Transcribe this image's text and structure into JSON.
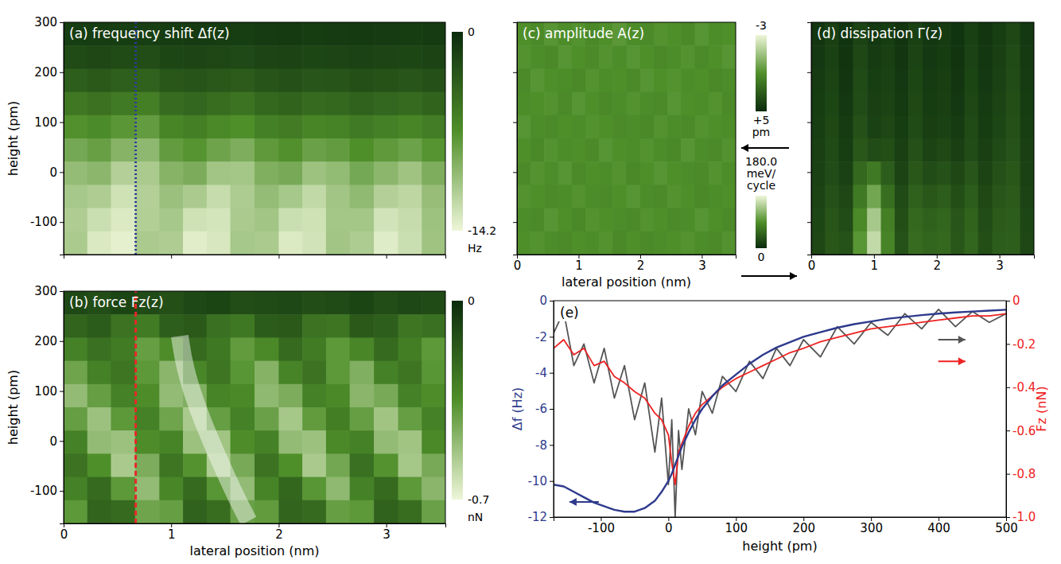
{
  "chart_data": [
    {
      "type": "heatmap",
      "title": "(a) frequency shift Δf(z)",
      "ylabel": "height (pm)",
      "xlim": [
        0,
        3.55
      ],
      "ylim": [
        -165,
        300
      ],
      "xticks": [
        0,
        1,
        2,
        3
      ],
      "yticks": [
        -100,
        0,
        100,
        200,
        300
      ],
      "tick_labels": "y",
      "x": [
        0.11,
        0.33,
        0.55,
        0.78,
        1.0,
        1.22,
        1.44,
        1.66,
        1.89,
        2.11,
        2.33,
        2.55,
        2.77,
        3.0,
        3.22,
        3.44
      ],
      "y": [
        277,
        230,
        184,
        137,
        91,
        44,
        -2,
        -49,
        -95,
        -142
      ],
      "z": [
        [
          -1.3,
          -1.2,
          -1.3,
          -1.4,
          -1.2,
          -1.1,
          -1.2,
          -1.3,
          -1.1,
          -1.0,
          -1.2,
          -1.1,
          -1.0,
          -1.1,
          -1.2,
          -1.1
        ],
        [
          -2.2,
          -2.0,
          -2.3,
          -2.4,
          -1.9,
          -1.8,
          -2.0,
          -2.1,
          -1.8,
          -1.7,
          -1.9,
          -1.8,
          -1.6,
          -1.8,
          -1.9,
          -1.7
        ],
        [
          -3.6,
          -3.3,
          -3.7,
          -3.9,
          -3.1,
          -2.9,
          -3.2,
          -3.4,
          -2.9,
          -2.7,
          -3.0,
          -2.9,
          -2.6,
          -2.8,
          -3.0,
          -2.7
        ],
        [
          -5.4,
          -5.0,
          -5.6,
          -5.9,
          -4.6,
          -4.2,
          -4.7,
          -5.1,
          -4.3,
          -4.0,
          -4.5,
          -4.3,
          -3.9,
          -4.2,
          -4.5,
          -4.0
        ],
        [
          -7.2,
          -6.8,
          -7.6,
          -8.0,
          -6.4,
          -5.9,
          -6.6,
          -7.1,
          -6.0,
          -5.7,
          -6.4,
          -6.2,
          -5.6,
          -6.0,
          -6.4,
          -5.8
        ],
        [
          -8.8,
          -8.2,
          -9.6,
          -9.9,
          -8.0,
          -7.4,
          -8.5,
          -9.2,
          -7.8,
          -7.2,
          -8.3,
          -8.0,
          -7.1,
          -7.8,
          -8.4,
          -7.4
        ],
        [
          -10.2,
          -9.8,
          -11.6,
          -11.2,
          -9.6,
          -9.1,
          -10.8,
          -10.9,
          -9.3,
          -8.9,
          -10.6,
          -10.1,
          -8.8,
          -9.8,
          -10.7,
          -9.2
        ],
        [
          -11.0,
          -11.4,
          -12.8,
          -11.6,
          -10.5,
          -11.2,
          -12.4,
          -11.3,
          -10.2,
          -11.0,
          -12.2,
          -10.8,
          -10.0,
          -11.6,
          -12.0,
          -10.3
        ],
        [
          -11.4,
          -12.6,
          -13.4,
          -11.5,
          -11.0,
          -12.8,
          -13.0,
          -11.2,
          -10.8,
          -12.6,
          -12.8,
          -10.9,
          -10.9,
          -12.9,
          -12.4,
          -10.6
        ],
        [
          -11.2,
          -13.3,
          -13.8,
          -11.2,
          -11.4,
          -13.6,
          -13.2,
          -11.0,
          -11.2,
          -13.4,
          -12.9,
          -10.8,
          -11.3,
          -13.5,
          -12.6,
          -10.7
        ]
      ],
      "zlim": [
        0,
        -14.2
      ],
      "zticks": [
        0,
        -14.2
      ],
      "zlabel": "Hz",
      "colors": [
        "#0b2b0d",
        "#4f8f2a",
        "#eef6d8"
      ],
      "cut": {
        "x": 0.67,
        "color": "#2e3a9c",
        "line_style": "dotted"
      }
    },
    {
      "type": "heatmap",
      "title": "(b) force Fz(z)",
      "xlabel": "lateral position (nm)",
      "ylabel": "height (pm)",
      "xlim": [
        0,
        3.55
      ],
      "ylim": [
        -165,
        300
      ],
      "xticks": [
        0,
        1,
        2,
        3
      ],
      "yticks": [
        -100,
        0,
        100,
        200,
        300
      ],
      "tick_labels": true,
      "x": [
        0.11,
        0.33,
        0.55,
        0.78,
        1.0,
        1.22,
        1.44,
        1.66,
        1.89,
        2.11,
        2.33,
        2.55,
        2.77,
        3.0,
        3.22,
        3.44
      ],
      "y": [
        277,
        230,
        184,
        137,
        91,
        44,
        -2,
        -49,
        -95,
        -142
      ],
      "z": [
        [
          -0.1,
          -0.12,
          -0.09,
          -0.11,
          -0.13,
          -0.1,
          -0.09,
          -0.12,
          -0.11,
          -0.1,
          -0.12,
          -0.11,
          -0.09,
          -0.12,
          -0.1,
          -0.11
        ],
        [
          -0.2,
          -0.17,
          -0.25,
          -0.28,
          -0.18,
          -0.16,
          -0.24,
          -0.27,
          -0.17,
          -0.16,
          -0.25,
          -0.26,
          -0.16,
          -0.18,
          -0.26,
          -0.24
        ],
        [
          -0.3,
          -0.24,
          -0.28,
          -0.4,
          -0.34,
          -0.22,
          -0.27,
          -0.39,
          -0.33,
          -0.22,
          -0.28,
          -0.38,
          -0.32,
          -0.22,
          -0.29,
          -0.38
        ],
        [
          -0.42,
          -0.3,
          -0.26,
          -0.38,
          -0.48,
          -0.32,
          -0.26,
          -0.37,
          -0.47,
          -0.31,
          -0.25,
          -0.38,
          -0.46,
          -0.3,
          -0.26,
          -0.37
        ],
        [
          -0.5,
          -0.4,
          -0.3,
          -0.34,
          -0.5,
          -0.46,
          -0.31,
          -0.33,
          -0.49,
          -0.45,
          -0.3,
          -0.33,
          -0.48,
          -0.44,
          -0.3,
          -0.34
        ],
        [
          -0.4,
          -0.52,
          -0.38,
          -0.3,
          -0.42,
          -0.55,
          -0.4,
          -0.3,
          -0.41,
          -0.54,
          -0.39,
          -0.29,
          -0.4,
          -0.53,
          -0.4,
          -0.3
        ],
        [
          -0.3,
          -0.5,
          -0.52,
          -0.34,
          -0.31,
          -0.52,
          -0.53,
          -0.34,
          -0.3,
          -0.5,
          -0.52,
          -0.33,
          -0.3,
          -0.5,
          -0.53,
          -0.33
        ],
        [
          -0.25,
          -0.35,
          -0.55,
          -0.45,
          -0.26,
          -0.36,
          -0.56,
          -0.44,
          -0.25,
          -0.35,
          -0.55,
          -0.43,
          -0.24,
          -0.36,
          -0.54,
          -0.44
        ],
        [
          -0.3,
          -0.22,
          -0.38,
          -0.5,
          -0.32,
          -0.22,
          -0.37,
          -0.5,
          -0.31,
          -0.21,
          -0.37,
          -0.49,
          -0.3,
          -0.22,
          -0.38,
          -0.48
        ],
        [
          -0.38,
          -0.2,
          -0.22,
          -0.42,
          -0.4,
          -0.19,
          -0.23,
          -0.41,
          -0.39,
          -0.2,
          -0.22,
          -0.4,
          -0.38,
          -0.19,
          -0.23,
          -0.41
        ]
      ],
      "zlim": [
        0,
        -0.7
      ],
      "zticks": [
        0,
        -0.7
      ],
      "zlabel": "nN",
      "colors": [
        "#0b2b0d",
        "#4f8f2a",
        "#eef6d8"
      ],
      "cut": {
        "x": 0.67,
        "color": "#e8262a",
        "line_style": "dashed"
      },
      "band": {
        "x": [
          1.08,
          1.12,
          1.25,
          1.45,
          1.62,
          1.72
        ],
        "y": [
          210,
          150,
          60,
          -40,
          -120,
          -160
        ]
      }
    },
    {
      "type": "heatmap",
      "title": "(c) amplitude A(z)",
      "xlabel": "lateral position (nm)",
      "xlim": [
        0,
        3.55
      ],
      "ylim": [
        -165,
        300
      ],
      "xticks": [
        0,
        1,
        2,
        3
      ],
      "yticks": [
        -100,
        0,
        100,
        200,
        300
      ],
      "tick_labels": "x",
      "x": [
        0.11,
        0.33,
        0.55,
        0.78,
        1.0,
        1.22,
        1.44,
        1.66,
        1.89,
        2.11,
        2.33,
        2.55,
        2.77,
        3.0,
        3.22,
        3.44
      ],
      "y": [
        277,
        230,
        184,
        137,
        91,
        44,
        -2,
        -49,
        -95,
        -142
      ],
      "z": [
        [
          1.0,
          1.2,
          0.8,
          1.1,
          0.9,
          1.3,
          1.0,
          0.7,
          1.1,
          1.2,
          0.9,
          1.0,
          1.3,
          0.8,
          1.1,
          1.0
        ],
        [
          0.9,
          1.1,
          1.3,
          0.8,
          1.0,
          1.2,
          0.9,
          1.1,
          0.8,
          1.0,
          1.3,
          1.1,
          0.9,
          1.2,
          1.0,
          0.8
        ],
        [
          1.2,
          0.8,
          1.0,
          1.1,
          1.3,
          0.9,
          1.1,
          1.0,
          1.2,
          0.8,
          1.0,
          0.9,
          1.1,
          1.0,
          1.3,
          1.1
        ],
        [
          1.1,
          1.0,
          0.9,
          1.2,
          0.8,
          1.0,
          1.3,
          1.1,
          0.9,
          1.1,
          1.2,
          0.8,
          1.0,
          1.1,
          0.9,
          1.2
        ],
        [
          0.8,
          1.1,
          1.2,
          1.0,
          1.1,
          0.9,
          1.0,
          1.2,
          1.1,
          1.3,
          0.9,
          1.1,
          1.2,
          0.9,
          1.0,
          1.1
        ],
        [
          1.0,
          1.3,
          0.9,
          1.1,
          1.0,
          1.2,
          0.8,
          1.0,
          1.1,
          0.9,
          1.1,
          1.3,
          0.8,
          1.1,
          1.2,
          0.9
        ],
        [
          1.2,
          0.9,
          1.1,
          0.8,
          1.2,
          1.0,
          1.1,
          0.9,
          1.3,
          1.0,
          0.8,
          1.0,
          1.1,
          1.2,
          0.9,
          1.1
        ],
        [
          0.9,
          1.0,
          1.2,
          1.1,
          0.9,
          1.1,
          1.2,
          1.0,
          0.8,
          1.1,
          1.2,
          0.9,
          1.0,
          1.3,
          1.1,
          1.0
        ],
        [
          1.1,
          1.2,
          0.8,
          1.0,
          1.3,
          0.9,
          1.0,
          1.1,
          1.2,
          0.9,
          1.0,
          1.2,
          1.1,
          0.8,
          1.0,
          1.2
        ],
        [
          1.0,
          0.9,
          1.1,
          1.2,
          1.0,
          1.1,
          0.9,
          1.3,
          1.0,
          1.2,
          1.1,
          1.0,
          0.9,
          1.1,
          1.2,
          0.9
        ]
      ],
      "zlim": [
        -3,
        5
      ],
      "zticks": [
        -3,
        {
          "value": 5,
          "label": "+5"
        }
      ],
      "zlabel": "pm",
      "colors": [
        "#eef6d8",
        "#4f8f2a",
        "#0b2b0d"
      ]
    },
    {
      "type": "heatmap",
      "title": "(d) dissipation Γ(z)",
      "xlim": [
        0,
        3.55
      ],
      "ylim": [
        -165,
        300
      ],
      "xticks": [
        0,
        1,
        2,
        3
      ],
      "yticks": [
        -100,
        0,
        100,
        200,
        300
      ],
      "tick_labels": "x",
      "x": [
        0.11,
        0.33,
        0.55,
        0.78,
        1.0,
        1.22,
        1.44,
        1.66,
        1.89,
        2.11,
        2.33,
        2.55,
        2.77,
        3.0,
        3.22,
        3.44
      ],
      "y": [
        277,
        230,
        184,
        137,
        91,
        44,
        -2,
        -49,
        -95,
        -142
      ],
      "z": [
        [
          10,
          18,
          8,
          22,
          12,
          15,
          9,
          20,
          11,
          14,
          8,
          19,
          10,
          16,
          25,
          12
        ],
        [
          12,
          20,
          9,
          25,
          14,
          18,
          10,
          22,
          12,
          15,
          9,
          21,
          11,
          18,
          28,
          13
        ],
        [
          14,
          22,
          10,
          28,
          16,
          20,
          12,
          24,
          14,
          17,
          10,
          23,
          12,
          20,
          30,
          14
        ],
        [
          15,
          24,
          12,
          30,
          18,
          22,
          13,
          26,
          15,
          18,
          12,
          25,
          14,
          22,
          32,
          15
        ],
        [
          16,
          26,
          14,
          34,
          20,
          25,
          15,
          28,
          17,
          20,
          14,
          28,
          15,
          24,
          34,
          16
        ],
        [
          18,
          28,
          16,
          40,
          30,
          32,
          18,
          34,
          22,
          26,
          18,
          30,
          18,
          28,
          36,
          18
        ],
        [
          20,
          30,
          20,
          55,
          70,
          45,
          22,
          40,
          30,
          35,
          25,
          38,
          22,
          34,
          40,
          20
        ],
        [
          22,
          34,
          25,
          70,
          110,
          60,
          28,
          48,
          40,
          45,
          32,
          45,
          26,
          38,
          42,
          22
        ],
        [
          24,
          38,
          30,
          85,
          140,
          75,
          32,
          55,
          48,
          52,
          38,
          50,
          30,
          42,
          45,
          24
        ],
        [
          25,
          40,
          35,
          95,
          155,
          80,
          35,
          58,
          52,
          55,
          40,
          52,
          32,
          45,
          46,
          25
        ]
      ],
      "zlim": [
        180,
        0
      ],
      "zticks": [
        {
          "value": 180,
          "label": "180.0"
        },
        0
      ],
      "zlabel": "meV/cycle",
      "colors": [
        "#eef6d8",
        "#4f8f2a",
        "#0b2b0d"
      ]
    },
    {
      "type": "line",
      "title": "(e)",
      "xlabel": "height (pm)",
      "ylabel": "Δf (Hz)",
      "y2label": "Fz (nN)",
      "xlim": [
        -170,
        500
      ],
      "xticks": [
        -100,
        0,
        100,
        200,
        300,
        400,
        500
      ],
      "ylim": [
        -12,
        0
      ],
      "yticks": [
        0,
        -2,
        -4,
        -6,
        -8,
        -10,
        -12
      ],
      "y2lim": [
        -1,
        0
      ],
      "y2ticks": [
        0,
        -0.2,
        -0.4,
        -0.6,
        -0.8,
        {
          "value": -1,
          "label": "-1.0"
        }
      ],
      "x": [
        -170,
        -155,
        -140,
        -125,
        -110,
        -95,
        -80,
        -65,
        -50,
        -35,
        -20,
        -10,
        0,
        5,
        10,
        15,
        20,
        30,
        40,
        50,
        65,
        80,
        100,
        120,
        140,
        160,
        180,
        200,
        225,
        250,
        275,
        300,
        325,
        350,
        375,
        400,
        425,
        450,
        475,
        500
      ],
      "series": [
        {
          "color": "#555555",
          "axis": "y2",
          "values": [
            -0.15,
            -0.05,
            -0.3,
            -0.2,
            -0.38,
            -0.22,
            -0.45,
            -0.3,
            -0.55,
            -0.38,
            -0.7,
            -0.45,
            -0.85,
            -0.55,
            -1.0,
            -0.6,
            -0.78,
            -0.5,
            -0.62,
            -0.42,
            -0.52,
            -0.35,
            -0.42,
            -0.28,
            -0.36,
            -0.22,
            -0.3,
            -0.18,
            -0.26,
            -0.12,
            -0.2,
            -0.1,
            -0.16,
            -0.06,
            -0.13,
            -0.04,
            -0.12,
            -0.05,
            -0.1,
            -0.06
          ]
        },
        {
          "color": "#ee2222",
          "axis": "y2",
          "values": [
            -0.22,
            -0.18,
            -0.25,
            -0.22,
            -0.3,
            -0.28,
            -0.35,
            -0.38,
            -0.42,
            -0.45,
            -0.52,
            -0.55,
            -0.62,
            -0.75,
            -0.85,
            -0.7,
            -0.66,
            -0.58,
            -0.52,
            -0.48,
            -0.44,
            -0.4,
            -0.36,
            -0.33,
            -0.3,
            -0.27,
            -0.24,
            -0.22,
            -0.19,
            -0.17,
            -0.15,
            -0.13,
            -0.12,
            -0.11,
            -0.1,
            -0.09,
            -0.08,
            -0.07,
            -0.07,
            -0.06
          ]
        },
        {
          "color": "#2e3a8c",
          "values": [
            -10.2,
            -10.3,
            -10.6,
            -10.9,
            -11.2,
            -11.4,
            -11.6,
            -11.7,
            -11.7,
            -11.5,
            -11.1,
            -10.6,
            -10.0,
            -9.6,
            -9.1,
            -8.6,
            -8.1,
            -7.3,
            -6.6,
            -6.0,
            -5.3,
            -4.7,
            -4.1,
            -3.5,
            -3.0,
            -2.6,
            -2.3,
            -2.0,
            -1.75,
            -1.5,
            -1.3,
            -1.15,
            -1.0,
            -0.9,
            -0.8,
            -0.72,
            -0.65,
            -0.6,
            -0.55,
            -0.5
          ]
        }
      ]
    }
  ]
}
